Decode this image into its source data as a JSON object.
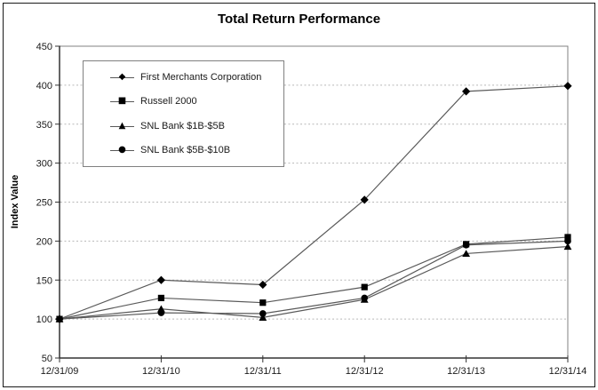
{
  "chart_data": {
    "type": "line",
    "title": "Total Return Performance",
    "xlabel": "",
    "ylabel": "Index Value",
    "x_labels": [
      "12/31/09",
      "12/31/10",
      "12/31/11",
      "12/31/12",
      "12/31/13",
      "12/31/14"
    ],
    "y_ticks": [
      50,
      100,
      150,
      200,
      250,
      300,
      350,
      400,
      450
    ],
    "ylim": [
      50,
      450
    ],
    "grid": "horizontal dotted gridlines every 50 from 100 to 400",
    "legend_position": "inside upper-left",
    "colors": {
      "marker_fill": "#000000",
      "series_line": "#595959",
      "gridline": "#b8b8b8",
      "plot_frame": "#808080",
      "axis_line": "#333333",
      "text": "#1a1a1a"
    },
    "series": [
      {
        "name": "First Merchants Corporation",
        "marker": "diamond",
        "glyph": "◆",
        "values": [
          100,
          150,
          144,
          253,
          392,
          399
        ]
      },
      {
        "name": "Russell 2000",
        "marker": "square",
        "glyph": "■",
        "values": [
          100,
          127,
          121,
          141,
          196,
          205
        ]
      },
      {
        "name": "SNL Bank $1B-$5B",
        "marker": "triangle",
        "glyph": "▲",
        "values": [
          100,
          113,
          102,
          125,
          184,
          193
        ]
      },
      {
        "name": "SNL Bank $5B-$10B",
        "marker": "circle",
        "glyph": "●",
        "values": [
          100,
          108,
          107,
          127,
          195,
          200
        ]
      }
    ]
  }
}
